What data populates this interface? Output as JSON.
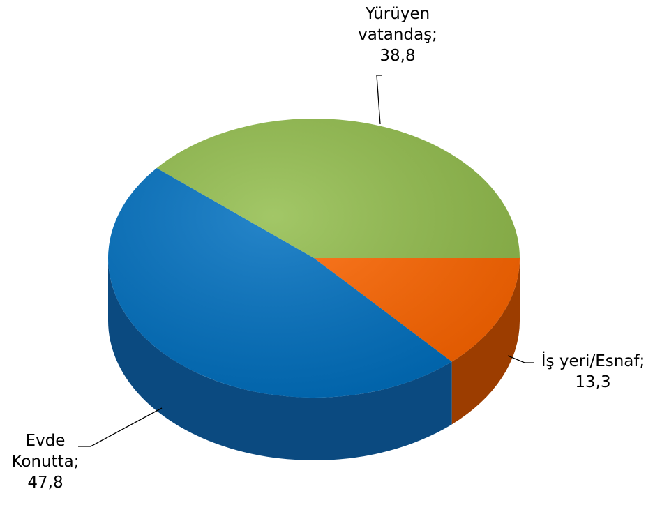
{
  "chart_data": {
    "type": "pie3d",
    "categories": [
      "İş yeri/Esnaf",
      "Evde Konutta",
      "Yürüyen vatandaş"
    ],
    "values": [
      13.3,
      47.8,
      38.8
    ],
    "value_labels": [
      "13,3",
      "47,8",
      "38,8"
    ],
    "label_separator": ";",
    "colors": [
      "#ff6600",
      "#0070c0",
      "#92bd4c"
    ],
    "side_colors": [
      "#9c3d00",
      "#0b4a80",
      "#5e7d2c"
    ]
  }
}
